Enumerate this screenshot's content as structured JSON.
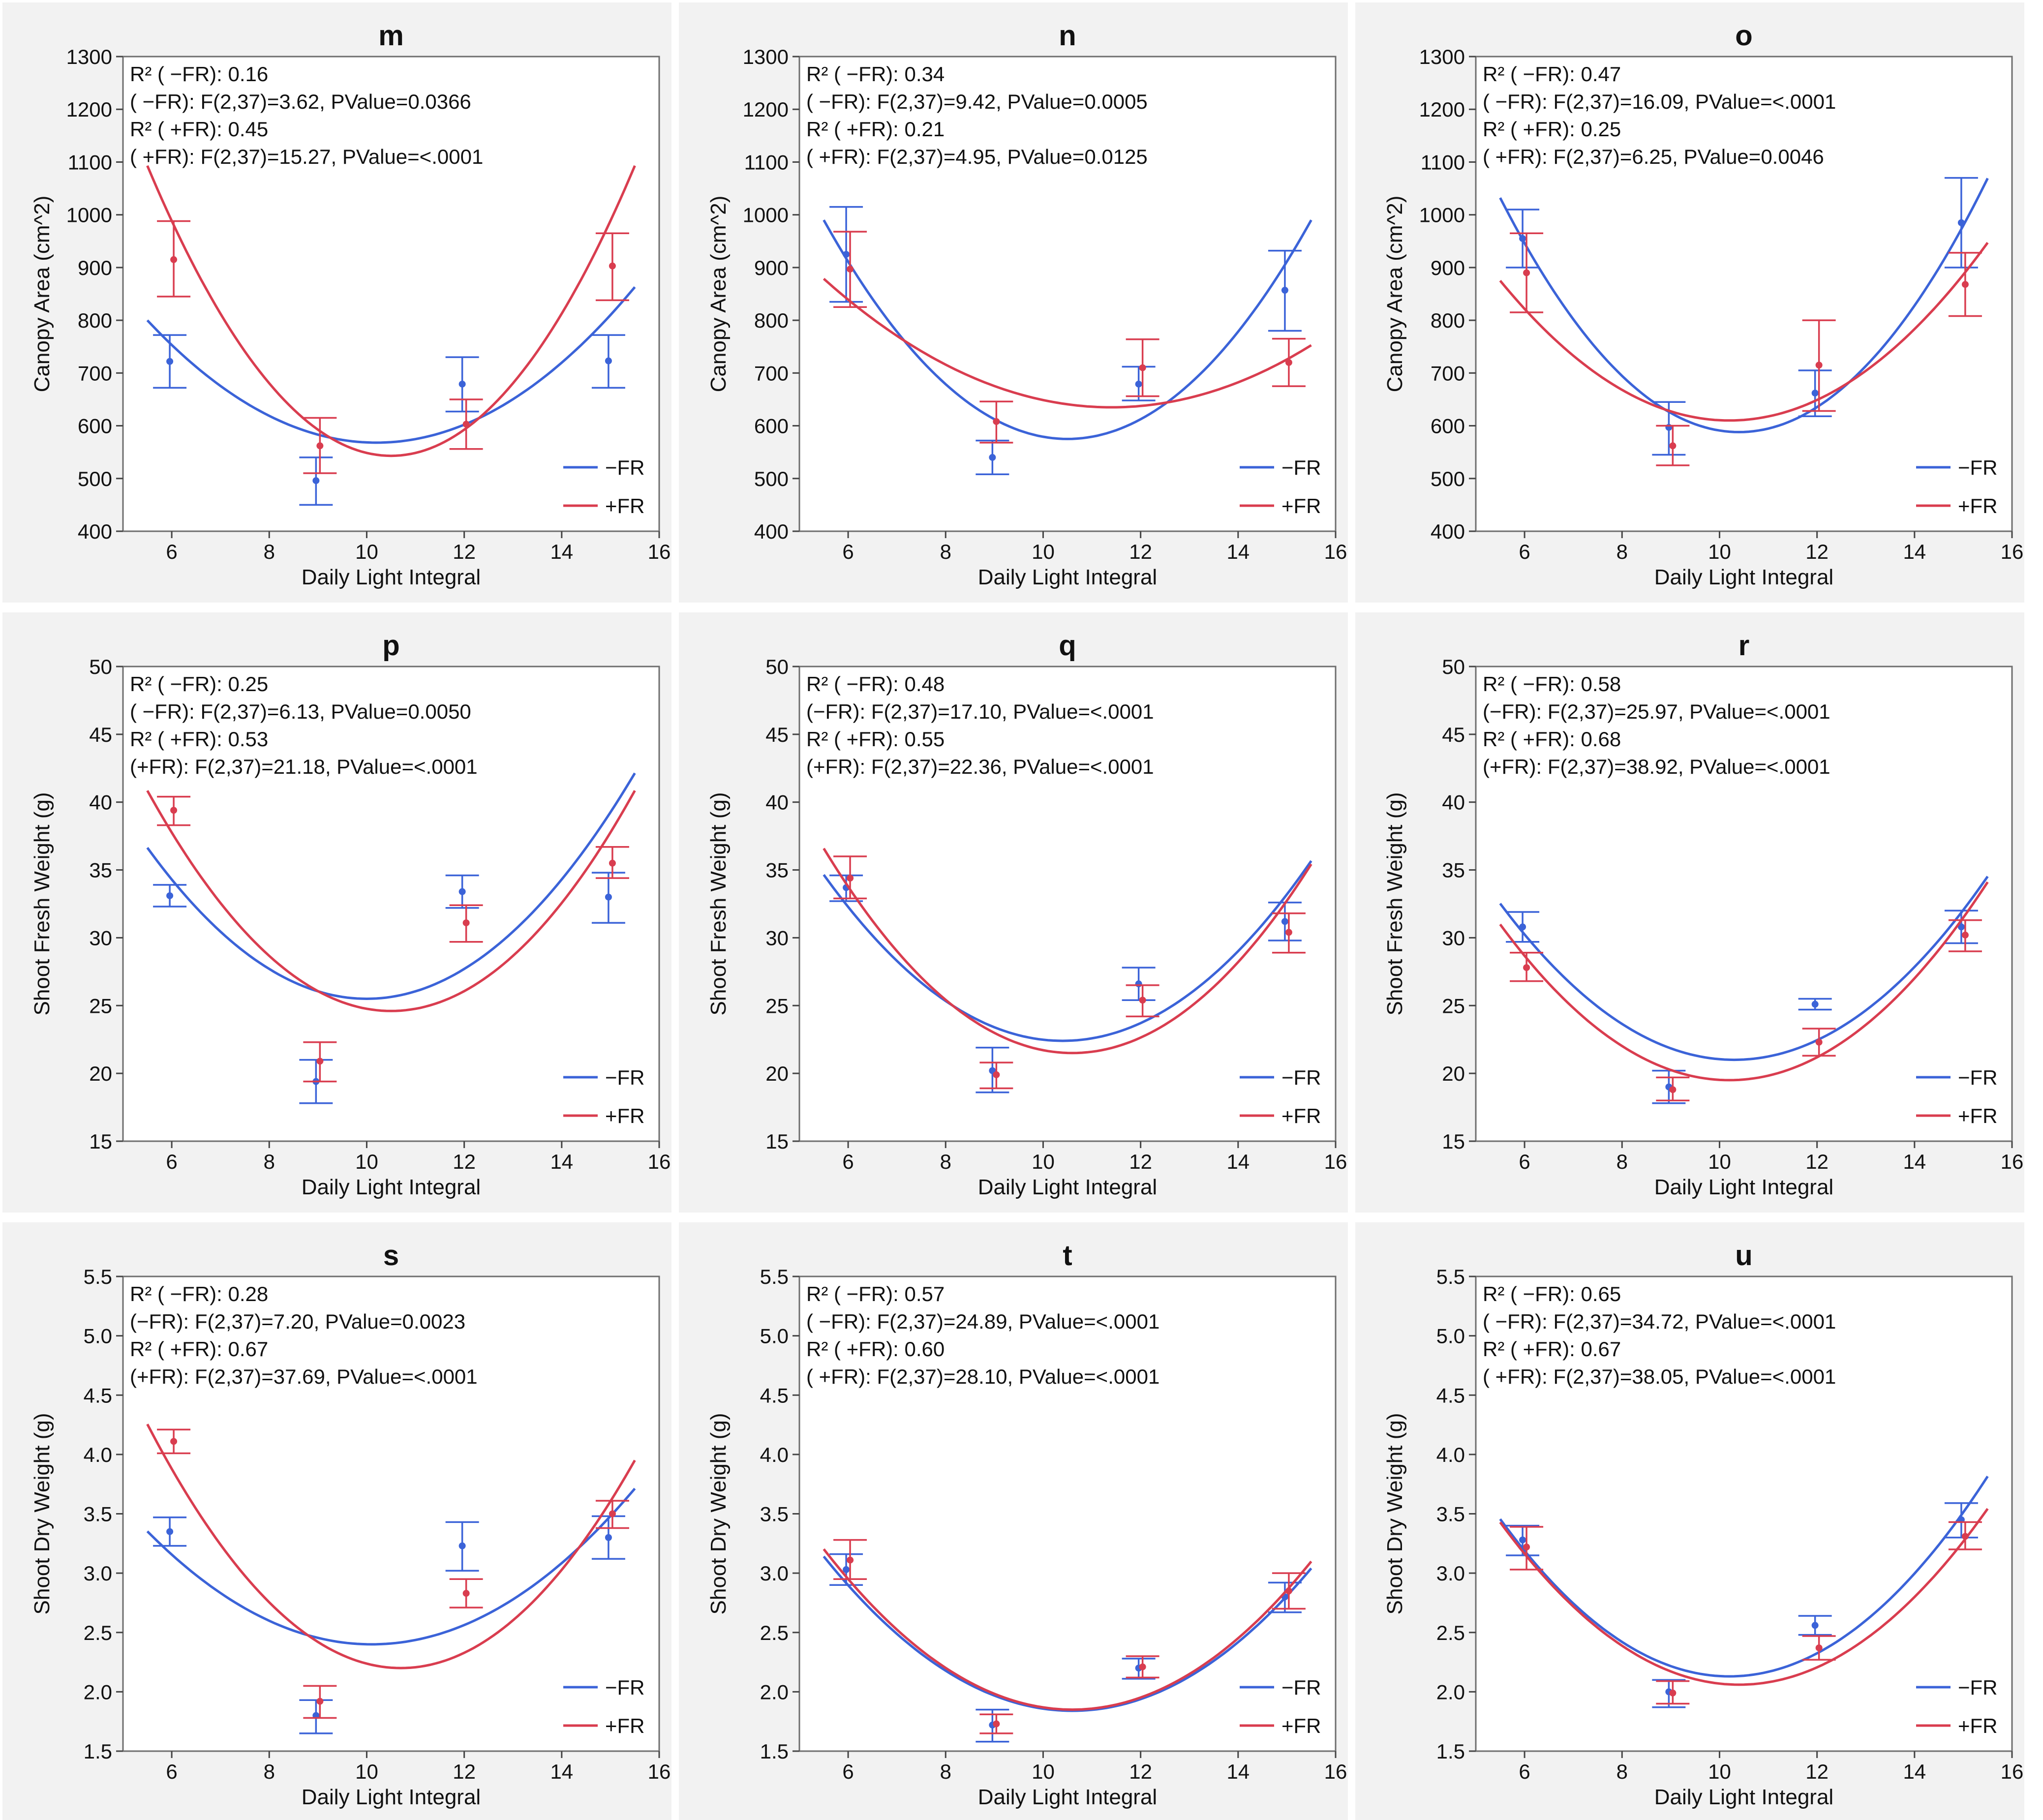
{
  "colors": {
    "minus_fr": "#3b63d8",
    "plus_fr": "#d93d4f"
  },
  "chart_data": [
    {
      "type": "scatter",
      "label": "m",
      "xlabel": "Daily Light Integral",
      "ylabel": "Canopy Area (cm^2)",
      "xlim": [
        5,
        16
      ],
      "ylim": [
        400,
        1300
      ],
      "xticks": [
        "6",
        "8",
        "10",
        "12",
        "14",
        "16"
      ],
      "yticks": [
        "400",
        "500",
        "600",
        "700",
        "800",
        "900",
        "1000",
        "1100",
        "1200",
        "1300"
      ],
      "stats": [
        "R² ( −FR): 0.16",
        "( −FR): F(2,37)=3.62, PValue=0.0366",
        "R² ( +FR): 0.45",
        "( +FR): F(2,37)=15.27, PValue=<.0001"
      ],
      "series": [
        {
          "name": "−FR",
          "x": [
            6,
            9,
            12,
            15
          ],
          "y": [
            722,
            496,
            679,
            723
          ],
          "err_lo": [
            672,
            450,
            627,
            672
          ],
          "err_hi": [
            772,
            540,
            730,
            772
          ],
          "fit": [
            5.5,
            15.5,
            568,
            10.2,
            10.5
          ]
        },
        {
          "name": "+FR",
          "x": [
            6,
            9,
            12,
            15
          ],
          "y": [
            915,
            562,
            603,
            903
          ],
          "err_lo": [
            845,
            510,
            556,
            838
          ],
          "err_hi": [
            988,
            615,
            650,
            965
          ],
          "fit": [
            5.5,
            15.5,
            543,
            10.5,
            22.0
          ]
        }
      ]
    },
    {
      "type": "scatter",
      "label": "n",
      "xlabel": "Daily Light Integral",
      "ylabel": "Canopy Area (cm^2)",
      "xlim": [
        5,
        16
      ],
      "ylim": [
        400,
        1300
      ],
      "xticks": [
        "6",
        "8",
        "10",
        "12",
        "14",
        "16"
      ],
      "yticks": [
        "400",
        "500",
        "600",
        "700",
        "800",
        "900",
        "1000",
        "1100",
        "1200",
        "1300"
      ],
      "stats": [
        "R² ( −FR): 0.34",
        "( −FR): F(2,37)=9.42, PValue=0.0005",
        "R² ( +FR): 0.21",
        "( +FR): F(2,37)=4.95, PValue=0.0125"
      ],
      "series": [
        {
          "name": "−FR",
          "x": [
            6,
            9,
            12,
            15
          ],
          "y": [
            925,
            540,
            679,
            857
          ],
          "err_lo": [
            835,
            508,
            648,
            780
          ],
          "err_hi": [
            1015,
            572,
            712,
            932
          ],
          "fit": [
            5.5,
            15.5,
            575,
            10.5,
            16.6
          ]
        },
        {
          "name": "+FR",
          "x": [
            6,
            9,
            12,
            15
          ],
          "y": [
            897,
            608,
            710,
            720
          ],
          "err_lo": [
            825,
            568,
            656,
            675
          ],
          "err_hi": [
            968,
            646,
            764,
            765
          ],
          "fit": [
            5.5,
            15.5,
            635,
            11.4,
            7.0
          ]
        }
      ]
    },
    {
      "type": "scatter",
      "label": "o",
      "xlabel": "Daily Light Integral",
      "ylabel": "Canopy Area (cm^2)",
      "xlim": [
        5,
        16
      ],
      "ylim": [
        400,
        1300
      ],
      "xticks": [
        "6",
        "8",
        "10",
        "12",
        "14",
        "16"
      ],
      "yticks": [
        "400",
        "500",
        "600",
        "700",
        "800",
        "900",
        "1000",
        "1100",
        "1200",
        "1300"
      ],
      "stats": [
        "R² ( −FR): 0.47",
        "( −FR): F(2,37)=16.09, PValue=<.0001",
        "R² ( +FR): 0.25",
        "( +FR): F(2,37)=6.25, PValue=0.0046"
      ],
      "series": [
        {
          "name": "−FR",
          "x": [
            6,
            9,
            12,
            15
          ],
          "y": [
            955,
            597,
            662,
            985
          ],
          "err_lo": [
            900,
            545,
            618,
            900
          ],
          "err_hi": [
            1010,
            645,
            705,
            1070
          ],
          "fit": [
            5.5,
            15.5,
            588,
            10.4,
            18.5
          ]
        },
        {
          "name": "+FR",
          "x": [
            6,
            9,
            12,
            15
          ],
          "y": [
            890,
            562,
            715,
            868
          ],
          "err_lo": [
            815,
            525,
            628,
            808
          ],
          "err_hi": [
            965,
            600,
            800,
            928
          ],
          "fit": [
            5.5,
            15.5,
            610,
            10.2,
            12.0
          ]
        }
      ]
    },
    {
      "type": "scatter",
      "label": "p",
      "xlabel": "Daily Light Integral",
      "ylabel": "Shoot Fresh Weight (g)",
      "xlim": [
        5,
        16
      ],
      "ylim": [
        15,
        50
      ],
      "xticks": [
        "6",
        "8",
        "10",
        "12",
        "14",
        "16"
      ],
      "yticks": [
        "15",
        "20",
        "25",
        "30",
        "35",
        "40",
        "45",
        "50"
      ],
      "stats": [
        "R² ( −FR): 0.25",
        "( −FR): F(2,37)=6.13, PValue=0.0050",
        "R² ( +FR): 0.53",
        "(+FR): F(2,37)=21.18, PValue=<.0001"
      ],
      "series": [
        {
          "name": "−FR",
          "x": [
            6,
            9,
            12,
            15
          ],
          "y": [
            33.1,
            19.4,
            33.4,
            33.0
          ],
          "err_lo": [
            32.3,
            17.8,
            32.2,
            31.1
          ],
          "err_hi": [
            33.9,
            21.0,
            34.6,
            34.8
          ],
          "fit": [
            5.5,
            15.5,
            25.5,
            10.0,
            0.55
          ]
        },
        {
          "name": "+FR",
          "x": [
            6,
            9,
            12,
            15
          ],
          "y": [
            39.4,
            20.9,
            31.1,
            35.5
          ],
          "err_lo": [
            38.3,
            19.4,
            29.7,
            34.4
          ],
          "err_hi": [
            40.4,
            22.3,
            32.4,
            36.7
          ],
          "fit": [
            5.5,
            15.5,
            24.6,
            10.5,
            0.65
          ]
        }
      ]
    },
    {
      "type": "scatter",
      "label": "q",
      "xlabel": "Daily Light Integral",
      "ylabel": "Shoot Fresh Weight (g)",
      "xlim": [
        5,
        16
      ],
      "ylim": [
        15,
        50
      ],
      "xticks": [
        "6",
        "8",
        "10",
        "12",
        "14",
        "16"
      ],
      "yticks": [
        "15",
        "20",
        "25",
        "30",
        "35",
        "40",
        "45",
        "50"
      ],
      "stats": [
        "R² ( −FR): 0.48",
        "(−FR): F(2,37)=17.10, PValue=<.0001",
        "R² ( +FR): 0.55",
        "(+FR): F(2,37)=22.36, PValue=<.0001"
      ],
      "series": [
        {
          "name": "−FR",
          "x": [
            6,
            9,
            12,
            15
          ],
          "y": [
            33.7,
            20.2,
            26.6,
            31.2
          ],
          "err_lo": [
            32.7,
            18.6,
            25.4,
            29.8
          ],
          "err_hi": [
            34.6,
            21.9,
            27.8,
            32.6
          ],
          "fit": [
            5.5,
            15.5,
            22.4,
            10.4,
            0.51
          ]
        },
        {
          "name": "+FR",
          "x": [
            6,
            9,
            12,
            15
          ],
          "y": [
            34.4,
            19.9,
            25.4,
            30.4
          ],
          "err_lo": [
            32.9,
            18.9,
            24.2,
            28.9
          ],
          "err_hi": [
            36.0,
            20.8,
            26.5,
            31.8
          ],
          "fit": [
            5.5,
            15.5,
            21.5,
            10.6,
            0.58
          ]
        }
      ]
    },
    {
      "type": "scatter",
      "label": "r",
      "xlabel": "Daily Light Integral",
      "ylabel": "Shoot Fresh Weight (g)",
      "xlim": [
        5,
        16
      ],
      "ylim": [
        15,
        50
      ],
      "xticks": [
        "6",
        "8",
        "10",
        "12",
        "14",
        "16"
      ],
      "yticks": [
        "15",
        "20",
        "25",
        "30",
        "35",
        "40",
        "45",
        "50"
      ],
      "stats": [
        "R² ( −FR): 0.58",
        "(−FR): F(2,37)=25.97, PValue=<.0001",
        "R² ( +FR): 0.68",
        "(+FR): F(2,37)=38.92, PValue=<.0001"
      ],
      "series": [
        {
          "name": "−FR",
          "x": [
            6,
            9,
            12,
            15
          ],
          "y": [
            30.8,
            19.0,
            25.1,
            30.8
          ],
          "err_lo": [
            29.7,
            17.8,
            24.7,
            29.6
          ],
          "err_hi": [
            31.9,
            20.2,
            25.5,
            32.0
          ],
          "fit": [
            5.5,
            15.5,
            21.0,
            10.3,
            0.5
          ]
        },
        {
          "name": "+FR",
          "x": [
            6,
            9,
            12,
            15
          ],
          "y": [
            27.8,
            18.8,
            22.3,
            30.2
          ],
          "err_lo": [
            26.8,
            18.0,
            21.3,
            29.0
          ],
          "err_hi": [
            28.9,
            19.7,
            23.3,
            31.3
          ],
          "fit": [
            5.5,
            15.5,
            19.5,
            10.2,
            0.52
          ]
        }
      ]
    },
    {
      "type": "scatter",
      "label": "s",
      "xlabel": "Daily Light Integral",
      "ylabel": "Shoot Dry Weight (g)",
      "xlim": [
        5,
        16
      ],
      "ylim": [
        1.5,
        5.5
      ],
      "xticks": [
        "6",
        "8",
        "10",
        "12",
        "14",
        "16"
      ],
      "yticks": [
        "1.5",
        "2.0",
        "2.5",
        "3.0",
        "3.5",
        "4.0",
        "4.5",
        "5.0",
        "5.5"
      ],
      "stats": [
        "R² ( −FR): 0.28",
        "(−FR): F(2,37)=7.20, PValue=0.0023",
        "R² ( +FR): 0.67",
        "(+FR): F(2,37)=37.69, PValue=<.0001"
      ],
      "series": [
        {
          "name": "−FR",
          "x": [
            6,
            9,
            12,
            15
          ],
          "y": [
            3.35,
            1.8,
            3.23,
            3.3
          ],
          "err_lo": [
            3.23,
            1.65,
            3.02,
            3.12
          ],
          "err_hi": [
            3.47,
            1.93,
            3.43,
            3.48
          ],
          "fit": [
            5.5,
            15.5,
            2.4,
            10.1,
            0.045
          ]
        },
        {
          "name": "+FR",
          "x": [
            6,
            9,
            12,
            15
          ],
          "y": [
            4.11,
            1.92,
            2.83,
            3.5
          ],
          "err_lo": [
            4.01,
            1.78,
            2.71,
            3.38
          ],
          "err_hi": [
            4.21,
            2.05,
            2.95,
            3.61
          ],
          "fit": [
            5.5,
            15.5,
            2.2,
            10.7,
            0.076
          ]
        }
      ]
    },
    {
      "type": "scatter",
      "label": "t",
      "xlabel": "Daily Light Integral",
      "ylabel": "Shoot Dry Weight (g)",
      "xlim": [
        5,
        16
      ],
      "ylim": [
        1.5,
        5.5
      ],
      "xticks": [
        "6",
        "8",
        "10",
        "12",
        "14",
        "16"
      ],
      "yticks": [
        "1.5",
        "2.0",
        "2.5",
        "3.0",
        "3.5",
        "4.0",
        "4.5",
        "5.0",
        "5.5"
      ],
      "stats": [
        "R² ( −FR): 0.57",
        "( −FR): F(2,37)=24.89, PValue=<.0001",
        "R² ( +FR): 0.60",
        "( +FR): F(2,37)=28.10, PValue=<.0001"
      ],
      "series": [
        {
          "name": "−FR",
          "x": [
            6,
            9,
            12,
            15
          ],
          "y": [
            3.03,
            1.72,
            2.2,
            2.8
          ],
          "err_lo": [
            2.9,
            1.58,
            2.11,
            2.67
          ],
          "err_hi": [
            3.16,
            1.85,
            2.28,
            2.92
          ],
          "fit": [
            5.5,
            15.5,
            1.84,
            10.6,
            0.05
          ]
        },
        {
          "name": "+FR",
          "x": [
            6,
            9,
            12,
            15
          ],
          "y": [
            3.11,
            1.73,
            2.21,
            2.85
          ],
          "err_lo": [
            2.95,
            1.65,
            2.12,
            2.7
          ],
          "err_hi": [
            3.28,
            1.81,
            2.3,
            3.0
          ],
          "fit": [
            5.5,
            15.5,
            1.85,
            10.6,
            0.052
          ]
        }
      ]
    },
    {
      "type": "scatter",
      "label": "u",
      "xlabel": "Daily Light Integral",
      "ylabel": "Shoot Dry Weight (g)",
      "xlim": [
        5,
        16
      ],
      "ylim": [
        1.5,
        5.5
      ],
      "xticks": [
        "6",
        "8",
        "10",
        "12",
        "14",
        "16"
      ],
      "yticks": [
        "1.5",
        "2.0",
        "2.5",
        "3.0",
        "3.5",
        "4.0",
        "4.5",
        "5.0",
        "5.5"
      ],
      "stats": [
        "R² ( −FR): 0.65",
        "( −FR): F(2,37)=34.72, PValue=<.0001",
        "R² ( +FR): 0.67",
        "( +FR): F(2,37)=38.05, PValue=<.0001"
      ],
      "series": [
        {
          "name": "−FR",
          "x": [
            6,
            9,
            12,
            15
          ],
          "y": [
            3.28,
            2.0,
            2.56,
            3.45
          ],
          "err_lo": [
            3.15,
            1.87,
            2.48,
            3.3
          ],
          "err_hi": [
            3.4,
            2.1,
            2.64,
            3.59
          ],
          "fit": [
            5.5,
            15.5,
            2.13,
            10.2,
            0.06
          ]
        },
        {
          "name": "+FR",
          "x": [
            6,
            9,
            12,
            15
          ],
          "y": [
            3.22,
            1.99,
            2.37,
            3.31
          ],
          "err_lo": [
            3.03,
            1.9,
            2.27,
            3.2
          ],
          "err_hi": [
            3.39,
            2.09,
            2.47,
            3.43
          ],
          "fit": [
            5.5,
            15.5,
            2.06,
            10.4,
            0.057
          ]
        }
      ]
    }
  ]
}
